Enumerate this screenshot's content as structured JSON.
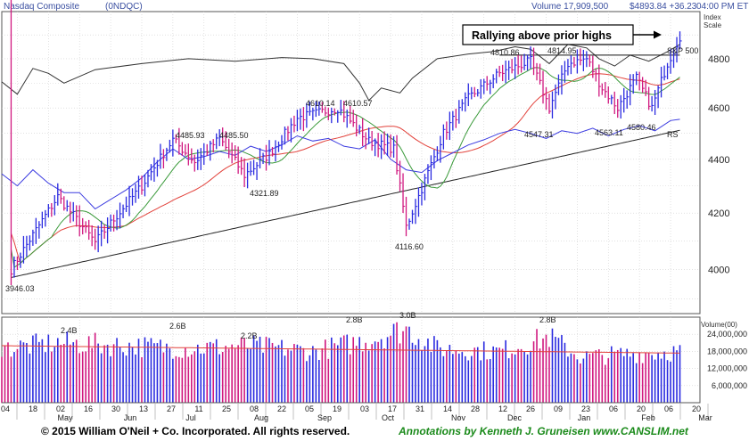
{
  "chart_data": {
    "type": "stock",
    "header": {
      "title": "Nasdaq Composite",
      "symbol": "(0NDQC)",
      "volume_text": "Volume 17,909,500",
      "price_text": "$4893.84 +36.23",
      "time_text": "04:00 PM ET"
    },
    "price_axis": {
      "label": "Index Scale",
      "ticks": [
        4000,
        4200,
        4400,
        4600,
        4800
      ],
      "log": true,
      "ylim": [
        3850,
        5000
      ]
    },
    "volume_axis": {
      "label": "Volume(00)",
      "ticks": [
        6000000,
        12000000,
        18000000,
        24000000
      ],
      "tick_labels": [
        "6,000,000",
        "12,000,000",
        "18,000,000",
        "24,000,000"
      ],
      "ylim": [
        0,
        30000000
      ]
    },
    "date_axis": {
      "day_labels": [
        "04",
        "18",
        "02",
        "16",
        "30",
        "13",
        "27",
        "11",
        "25",
        "08",
        "22",
        "05",
        "19",
        "03",
        "17",
        "31",
        "14",
        "28",
        "12",
        "26",
        "09",
        "23",
        "06",
        "20",
        "06",
        "20"
      ],
      "month_labels": [
        "May",
        "Jun",
        "Jul",
        "Aug",
        "Sep",
        "Oct",
        "Nov",
        "Dec",
        "Jan",
        "Feb",
        "Mar"
      ]
    },
    "price_labels": [
      {
        "text": "3946.03",
        "value": 3946.03
      },
      {
        "text": "4485.93",
        "value": 4485.93
      },
      {
        "text": "4485.50",
        "value": 4485.5
      },
      {
        "text": "4321.89",
        "value": 4321.89
      },
      {
        "text": "4610.14",
        "value": 4610.14
      },
      {
        "text": "4610.57",
        "value": 4610.57
      },
      {
        "text": "4116.60",
        "value": 4116.6
      },
      {
        "text": "4810.86",
        "value": 4810.86
      },
      {
        "text": "4814.95",
        "value": 4814.95
      },
      {
        "text": "4547.31",
        "value": 4547.31
      },
      {
        "text": "4563.11",
        "value": 4563.11
      },
      {
        "text": "4580.46",
        "value": 4580.46
      }
    ],
    "volume_labels": [
      "2.4B",
      "2.6B",
      "2.2B",
      "2.8B",
      "3.0B",
      "2.8B"
    ],
    "annotation": "Rallying above prior highs",
    "series_labels": {
      "sp500": "S&P 500",
      "rs": "RS"
    },
    "pivot_level": 4815,
    "key_closes": [
      {
        "i": 3,
        "close": 4000
      },
      {
        "i": 18,
        "close": 4260
      },
      {
        "i": 30,
        "close": 4095
      },
      {
        "i": 45,
        "close": 4300
      },
      {
        "i": 55,
        "close": 4475
      },
      {
        "i": 62,
        "close": 4390
      },
      {
        "i": 70,
        "close": 4480
      },
      {
        "i": 78,
        "close": 4340
      },
      {
        "i": 86,
        "close": 4420
      },
      {
        "i": 95,
        "close": 4560
      },
      {
        "i": 108,
        "close": 4600
      },
      {
        "i": 118,
        "close": 4470
      },
      {
        "i": 126,
        "close": 4440
      },
      {
        "i": 130,
        "close": 4150
      },
      {
        "i": 135,
        "close": 4290
      },
      {
        "i": 142,
        "close": 4500
      },
      {
        "i": 150,
        "close": 4640
      },
      {
        "i": 160,
        "close": 4740
      },
      {
        "i": 170,
        "close": 4790
      },
      {
        "i": 176,
        "close": 4600
      },
      {
        "i": 182,
        "close": 4780
      },
      {
        "i": 188,
        "close": 4800
      },
      {
        "i": 193,
        "close": 4680
      },
      {
        "i": 198,
        "close": 4600
      },
      {
        "i": 204,
        "close": 4720
      },
      {
        "i": 209,
        "close": 4600
      },
      {
        "i": 214,
        "close": 4780
      },
      {
        "i": 218,
        "close": 4893.84
      }
    ],
    "key_volumes": [
      {
        "i": 0,
        "v": 19
      },
      {
        "i": 18,
        "v": 21
      },
      {
        "i": 40,
        "v": 20
      },
      {
        "i": 60,
        "v": 19
      },
      {
        "i": 80,
        "v": 20
      },
      {
        "i": 100,
        "v": 18
      },
      {
        "i": 118,
        "v": 22
      },
      {
        "i": 130,
        "v": 26
      },
      {
        "i": 140,
        "v": 19
      },
      {
        "i": 160,
        "v": 18
      },
      {
        "i": 176,
        "v": 23
      },
      {
        "i": 186,
        "v": 16
      },
      {
        "i": 200,
        "v": 17
      },
      {
        "i": 218,
        "v": 18
      }
    ],
    "sp500_rel": [
      [
        0,
        4705
      ],
      [
        5,
        4655
      ],
      [
        10,
        4760
      ],
      [
        15,
        4740
      ],
      [
        20,
        4700
      ],
      [
        30,
        4755
      ],
      [
        45,
        4780
      ],
      [
        60,
        4800
      ],
      [
        75,
        4790
      ],
      [
        90,
        4805
      ],
      [
        100,
        4800
      ],
      [
        110,
        4780
      ],
      [
        115,
        4700
      ],
      [
        118,
        4630
      ],
      [
        122,
        4680
      ],
      [
        128,
        4660
      ],
      [
        132,
        4720
      ],
      [
        140,
        4800
      ],
      [
        150,
        4820
      ],
      [
        158,
        4830
      ],
      [
        165,
        4850
      ],
      [
        170,
        4840
      ],
      [
        176,
        4780
      ],
      [
        182,
        4860
      ],
      [
        188,
        4845
      ],
      [
        192,
        4800
      ],
      [
        197,
        4770
      ],
      [
        202,
        4815
      ],
      [
        208,
        4790
      ],
      [
        214,
        4830
      ],
      [
        218,
        4860
      ]
    ],
    "rs_line": [
      [
        0,
        4345
      ],
      [
        5,
        4300
      ],
      [
        10,
        4360
      ],
      [
        15,
        4310
      ],
      [
        20,
        4275
      ],
      [
        25,
        4275
      ],
      [
        30,
        4215
      ],
      [
        35,
        4250
      ],
      [
        40,
        4285
      ],
      [
        45,
        4330
      ],
      [
        50,
        4390
      ],
      [
        55,
        4440
      ],
      [
        60,
        4400
      ],
      [
        65,
        4410
      ],
      [
        70,
        4430
      ],
      [
        75,
        4415
      ],
      [
        80,
        4450
      ],
      [
        85,
        4430
      ],
      [
        90,
        4455
      ],
      [
        95,
        4490
      ],
      [
        100,
        4470
      ],
      [
        105,
        4480
      ],
      [
        110,
        4450
      ],
      [
        115,
        4440
      ],
      [
        120,
        4475
      ],
      [
        125,
        4400
      ],
      [
        130,
        4360
      ],
      [
        135,
        4350
      ],
      [
        140,
        4395
      ],
      [
        145,
        4425
      ],
      [
        150,
        4455
      ],
      [
        155,
        4475
      ],
      [
        160,
        4500
      ],
      [
        165,
        4515
      ],
      [
        170,
        4500
      ],
      [
        175,
        4480
      ],
      [
        180,
        4510
      ],
      [
        185,
        4500
      ],
      [
        190,
        4520
      ],
      [
        195,
        4490
      ],
      [
        200,
        4515
      ],
      [
        205,
        4530
      ],
      [
        210,
        4510
      ],
      [
        215,
        4550
      ],
      [
        218,
        4555
      ]
    ]
  }
}
